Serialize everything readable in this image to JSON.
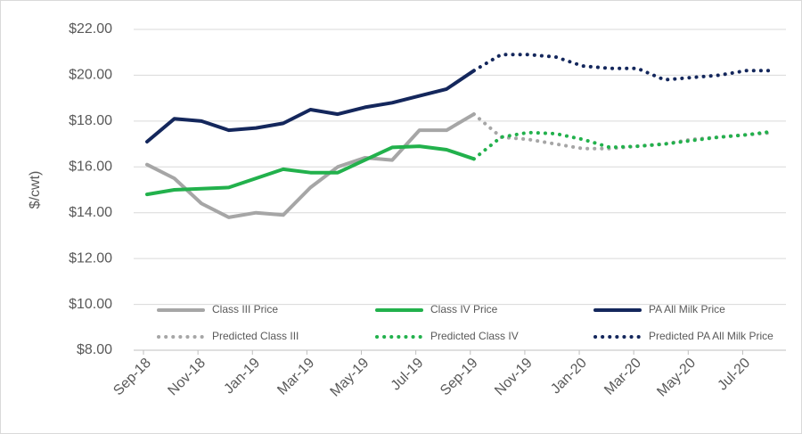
{
  "chart_data": {
    "type": "line",
    "y_label": "$/cwt)",
    "categories": [
      "Sep-18",
      null,
      "Nov-18",
      null,
      "Jan-19",
      null,
      "Mar-19",
      null,
      "May-19",
      null,
      "Jul-19",
      null,
      "Sep-19",
      null,
      "Nov-19",
      null,
      "Jan-20",
      null,
      "Mar-20",
      null,
      "May-20",
      null,
      "Jul-20",
      null
    ],
    "ylim": [
      8,
      22
    ],
    "yticks": [
      {
        "value": 8,
        "label": "$8.00"
      },
      {
        "value": 10,
        "label": "$10.00"
      },
      {
        "value": 12,
        "label": "$12.00"
      },
      {
        "value": 14,
        "label": "$14.00"
      },
      {
        "value": 16,
        "label": "$16.00"
      },
      {
        "value": 18,
        "label": "$18.00"
      },
      {
        "value": 20,
        "label": "$20.00"
      },
      {
        "value": 22,
        "label": "$22.00"
      }
    ],
    "grid": true,
    "legend": "bottom",
    "series": [
      {
        "name": "Class III Price",
        "color": "#a6a6a6",
        "dash": "solid",
        "values": [
          16.1,
          15.5,
          14.4,
          13.8,
          14.0,
          13.9,
          15.1,
          16.0,
          16.4,
          16.3,
          17.6,
          17.6,
          18.3,
          null,
          null,
          null,
          null,
          null,
          null,
          null,
          null,
          null,
          null,
          null
        ]
      },
      {
        "name": "Class IV Price",
        "color": "#22b14c",
        "dash": "solid",
        "values": [
          14.8,
          15.0,
          15.05,
          15.1,
          15.5,
          15.9,
          15.75,
          15.75,
          16.3,
          16.85,
          16.9,
          16.75,
          16.35,
          null,
          null,
          null,
          null,
          null,
          null,
          null,
          null,
          null,
          null,
          null
        ]
      },
      {
        "name": "PA All Milk Price",
        "color": "#14275c",
        "dash": "solid",
        "values": [
          17.1,
          18.1,
          18.0,
          17.6,
          17.7,
          17.9,
          18.5,
          18.3,
          18.6,
          18.8,
          19.1,
          19.4,
          20.2,
          null,
          null,
          null,
          null,
          null,
          null,
          null,
          null,
          null,
          null,
          null
        ]
      },
      {
        "name": "Predicted Class III",
        "color": "#a6a6a6",
        "dash": "dotted",
        "values": [
          null,
          null,
          null,
          null,
          null,
          null,
          null,
          null,
          null,
          null,
          null,
          null,
          18.3,
          17.3,
          17.2,
          17.0,
          16.8,
          16.8,
          16.9,
          17.0,
          17.2,
          17.3,
          17.4,
          17.5
        ]
      },
      {
        "name": "Predicted Class IV",
        "color": "#22b14c",
        "dash": "dotted",
        "values": [
          null,
          null,
          null,
          null,
          null,
          null,
          null,
          null,
          null,
          null,
          null,
          null,
          16.35,
          17.3,
          17.5,
          17.45,
          17.2,
          16.85,
          16.9,
          17.0,
          17.15,
          17.3,
          17.4,
          17.55
        ]
      },
      {
        "name": "Predicted PA All Milk Price",
        "color": "#14275c",
        "dash": "dotted",
        "values": [
          null,
          null,
          null,
          null,
          null,
          null,
          null,
          null,
          null,
          null,
          null,
          null,
          20.2,
          20.9,
          20.9,
          20.8,
          20.4,
          20.3,
          20.3,
          19.8,
          19.9,
          20.0,
          20.2,
          20.2
        ]
      }
    ]
  }
}
